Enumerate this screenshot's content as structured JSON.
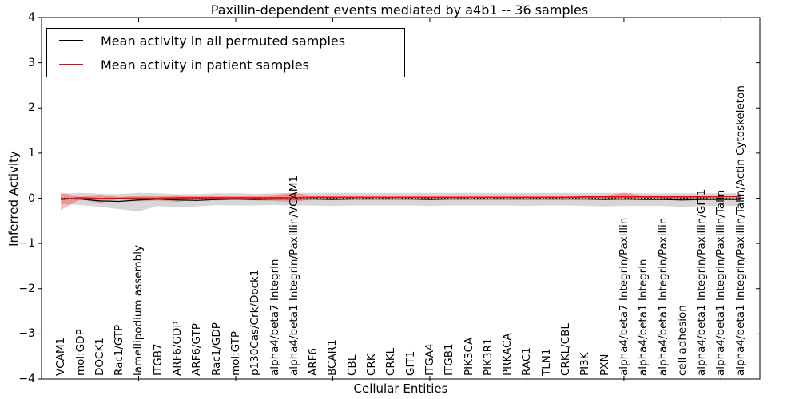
{
  "figure": {
    "title": "Paxillin-dependent events mediated by a4b1 -- 36 samples",
    "xlabel": "Cellular Entities",
    "ylabel": "Inferred Activity"
  },
  "legend": {
    "items": [
      {
        "label": "Mean activity in all permuted samples",
        "color": "#000000"
      },
      {
        "label": "Mean activity in patient samples",
        "color": "#ff0000"
      }
    ]
  },
  "chart_data": {
    "type": "line",
    "title": "Paxillin-dependent events mediated by a4b1 -- 36 samples",
    "xlabel": "Cellular Entities",
    "ylabel": "Inferred Activity",
    "xlim": [
      0,
      37
    ],
    "ylim": [
      -4,
      4
    ],
    "yticks": [
      -4,
      -3,
      -2,
      -1,
      0,
      1,
      2,
      3,
      4
    ],
    "xticks": [
      5,
      10,
      15,
      20,
      25,
      30,
      35
    ],
    "grid": false,
    "legend_position": "upper left",
    "reference_line": {
      "y": 0,
      "style": "dotted",
      "color": "#000000"
    },
    "categories": [
      "VCAM1",
      "mol:GDP",
      "DOCK1",
      "Rac1/GTP",
      "lamellipodium assembly",
      "ITGB7",
      "ARF6/GDP",
      "ARF6/GTP",
      "Rac1/GDP",
      "mol:GTP",
      "p130Cas/Crk/Dock1",
      "alpha4/beta7 Integrin",
      "alpha4/beta1 Integrin/Paxillin/VCAM1",
      "ARF6",
      "BCAR1",
      "CBL",
      "CRK",
      "CRKL",
      "GIT1",
      "ITGA4",
      "ITGB1",
      "PIK3CA",
      "PIK3R1",
      "PRKACA",
      "RAC1",
      "TLN1",
      "CRKL/CBL",
      "PI3K",
      "PXN",
      "alpha4/beta7 Integrin/Paxillin",
      "alpha4/beta1 Integrin",
      "alpha4/beta1 Integrin/Paxillin",
      "cell adhesion",
      "alpha4/beta1 Integrin/Paxillin/GIT1",
      "alpha4/beta1 Integrin/Paxillin/Talin",
      "alpha4/beta1 Integrin/Paxillin/Talin/Actin Cytoskeleton"
    ],
    "series": [
      {
        "name": "Mean activity in all permuted samples",
        "color": "#000000",
        "band_color": "rgba(0,0,0,0.16)",
        "mean": [
          -0.01,
          -0.02,
          -0.06,
          -0.07,
          -0.04,
          -0.02,
          -0.04,
          -0.05,
          -0.03,
          -0.02,
          -0.03,
          -0.02,
          -0.02,
          -0.02,
          -0.03,
          -0.02,
          -0.02,
          -0.02,
          -0.02,
          -0.03,
          -0.02,
          -0.02,
          -0.02,
          -0.02,
          -0.02,
          -0.02,
          -0.02,
          -0.02,
          -0.03,
          -0.02,
          -0.03,
          -0.03,
          -0.04,
          -0.03,
          -0.03,
          -0.03
        ],
        "band_upper": [
          0.1,
          0.12,
          0.1,
          0.09,
          0.12,
          0.11,
          0.09,
          0.09,
          0.11,
          0.11,
          0.1,
          0.11,
          0.12,
          0.12,
          0.12,
          0.12,
          0.12,
          0.12,
          0.12,
          0.12,
          0.12,
          0.12,
          0.12,
          0.12,
          0.12,
          0.12,
          0.12,
          0.12,
          0.12,
          0.12,
          0.11,
          0.11,
          0.11,
          0.11,
          0.11,
          0.11
        ],
        "band_lower": [
          -0.13,
          -0.15,
          -0.19,
          -0.24,
          -0.29,
          -0.17,
          -0.2,
          -0.18,
          -0.15,
          -0.16,
          -0.16,
          -0.15,
          -0.16,
          -0.16,
          -0.17,
          -0.16,
          -0.16,
          -0.16,
          -0.16,
          -0.17,
          -0.16,
          -0.16,
          -0.16,
          -0.16,
          -0.17,
          -0.16,
          -0.16,
          -0.17,
          -0.18,
          -0.17,
          -0.17,
          -0.17,
          -0.19,
          -0.17,
          -0.17,
          -0.17
        ]
      },
      {
        "name": "Mean activity in patient samples",
        "color": "#ff0000",
        "band_color": "rgba(255,0,0,0.28)",
        "mean": [
          -0.03,
          0.01,
          -0.01,
          0.0,
          0.0,
          0.0,
          0.01,
          0.01,
          0.01,
          0.01,
          0.01,
          0.01,
          0.01,
          0.02,
          0.02,
          0.02,
          0.02,
          0.02,
          0.02,
          0.02,
          0.02,
          0.02,
          0.02,
          0.02,
          0.02,
          0.02,
          0.02,
          0.03,
          0.03,
          0.03,
          0.03,
          0.03,
          0.03,
          0.03,
          0.04,
          0.04
        ],
        "band_upper": [
          0.12,
          0.03,
          0.08,
          0.02,
          0.06,
          0.05,
          0.07,
          0.04,
          0.06,
          0.04,
          0.06,
          0.07,
          0.12,
          0.05,
          0.04,
          0.04,
          0.04,
          0.04,
          0.04,
          0.04,
          0.04,
          0.04,
          0.04,
          0.04,
          0.04,
          0.04,
          0.05,
          0.05,
          0.06,
          0.12,
          0.06,
          0.05,
          0.05,
          0.05,
          0.06,
          0.07
        ],
        "band_lower": [
          -0.26,
          -0.02,
          -0.11,
          -0.02,
          -0.07,
          -0.05,
          -0.08,
          -0.03,
          -0.05,
          -0.03,
          -0.05,
          -0.06,
          -0.09,
          -0.02,
          -0.01,
          -0.01,
          -0.01,
          -0.01,
          -0.01,
          -0.01,
          -0.01,
          -0.01,
          -0.01,
          -0.01,
          -0.01,
          -0.01,
          -0.02,
          -0.02,
          -0.02,
          -0.03,
          -0.02,
          -0.02,
          -0.02,
          -0.02,
          -0.03,
          -0.04
        ]
      }
    ]
  }
}
